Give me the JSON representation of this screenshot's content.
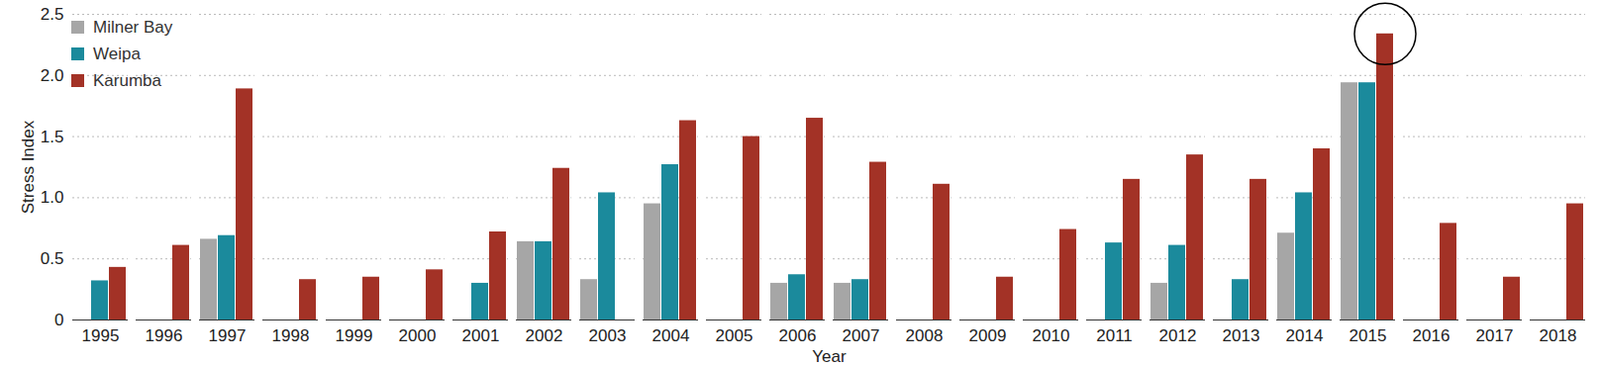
{
  "chart_data": {
    "type": "bar",
    "xlabel": "Year",
    "ylabel": "Stress Index",
    "categories": [
      1995,
      1996,
      1997,
      1998,
      1999,
      2000,
      2001,
      2002,
      2003,
      2004,
      2005,
      2006,
      2007,
      2008,
      2009,
      2010,
      2011,
      2012,
      2013,
      2014,
      2015,
      2016,
      2017,
      2018
    ],
    "series": [
      {
        "name": "Milner Bay",
        "color": "#a6a6a6",
        "values": [
          null,
          null,
          0.66,
          null,
          null,
          null,
          null,
          0.64,
          0.33,
          0.95,
          null,
          0.3,
          0.3,
          null,
          null,
          null,
          null,
          0.3,
          null,
          0.71,
          1.94,
          null,
          null,
          null
        ]
      },
      {
        "name": "Weipa",
        "color": "#1b8a9c",
        "values": [
          0.32,
          null,
          0.69,
          null,
          null,
          null,
          0.3,
          0.64,
          1.04,
          1.27,
          null,
          0.37,
          0.33,
          null,
          null,
          null,
          0.63,
          0.61,
          0.33,
          1.04,
          1.94,
          null,
          null,
          null
        ]
      },
      {
        "name": "Karumba",
        "color": "#a33226",
        "values": [
          0.43,
          0.61,
          1.89,
          0.33,
          0.35,
          0.41,
          0.72,
          1.24,
          null,
          1.63,
          1.5,
          1.65,
          1.29,
          1.11,
          0.35,
          0.74,
          1.15,
          1.35,
          1.15,
          1.4,
          2.34,
          0.79,
          0.35,
          0.95
        ]
      }
    ],
    "ylim": [
      0,
      2.5
    ],
    "yticks": [
      0,
      0.5,
      {
        "value": 1,
        "label": "1.0"
      },
      1.5,
      {
        "value": 2,
        "label": "2.0"
      },
      2.5
    ],
    "grid": true,
    "legend": "top-left"
  }
}
